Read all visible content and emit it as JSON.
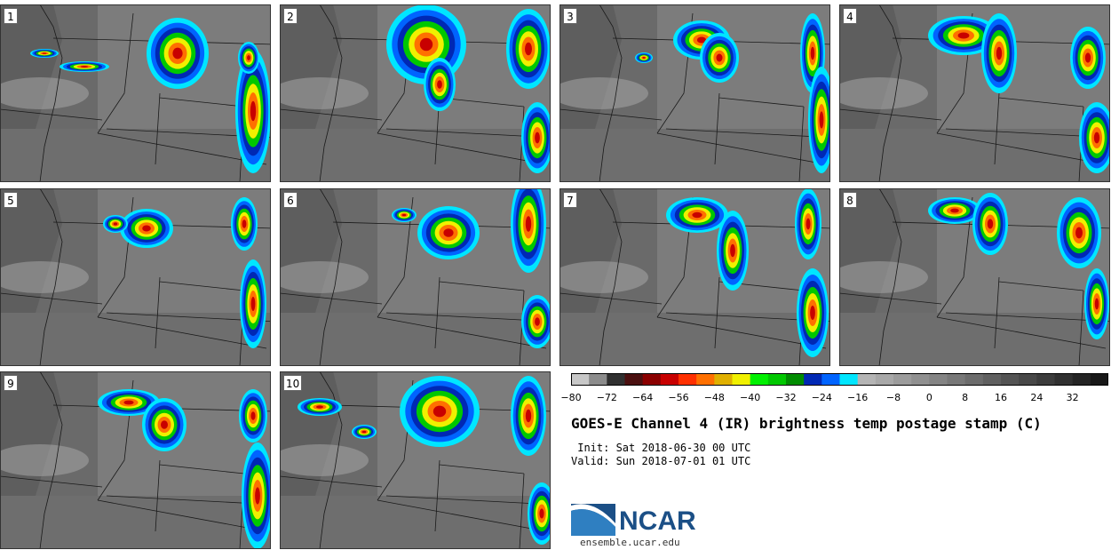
{
  "panels": [
    {
      "number": "1"
    },
    {
      "number": "2"
    },
    {
      "number": "3"
    },
    {
      "number": "4"
    },
    {
      "number": "5"
    },
    {
      "number": "6"
    },
    {
      "number": "7"
    },
    {
      "number": "8"
    },
    {
      "number": "9"
    },
    {
      "number": "10"
    }
  ],
  "colorbar": {
    "ticks": [
      "−80",
      "−72",
      "−64",
      "−56",
      "−48",
      "−40",
      "−32",
      "−24",
      "−16",
      "−8",
      "0",
      "8",
      "16",
      "24",
      "32"
    ],
    "tick_values": [
      -80,
      -72,
      -64,
      -56,
      -48,
      -40,
      -32,
      -24,
      -16,
      -8,
      0,
      8,
      16,
      24,
      32
    ],
    "min": -80,
    "max": 40,
    "step": 4,
    "colors": [
      "#c8c8c8",
      "#8c8c8c",
      "#303030",
      "#4b1010",
      "#8b0000",
      "#c80000",
      "#ff3000",
      "#ff7000",
      "#e0b000",
      "#f0f000",
      "#00f000",
      "#00c800",
      "#008c00",
      "#0028b4",
      "#0064ff",
      "#00e6ff",
      "#b4b4b4",
      "#a8a8a8",
      "#9c9c9c",
      "#909090",
      "#848484",
      "#787878",
      "#6c6c6c",
      "#606060",
      "#545454",
      "#484848",
      "#3c3c3c",
      "#303030",
      "#242424",
      "#181818"
    ]
  },
  "title": "GOES-E Channel 4 (IR) brightness temp postage stamp (C)",
  "init_line": " Init: Sat 2018-06-30 00 UTC",
  "valid_line": "Valid: Sun 2018-07-01 01 UTC",
  "logo": {
    "text": "NCAR",
    "brand_color": "#1b4f86",
    "wave_color": "#2f7fc1"
  },
  "url": "ensemble.ucar.edu"
}
